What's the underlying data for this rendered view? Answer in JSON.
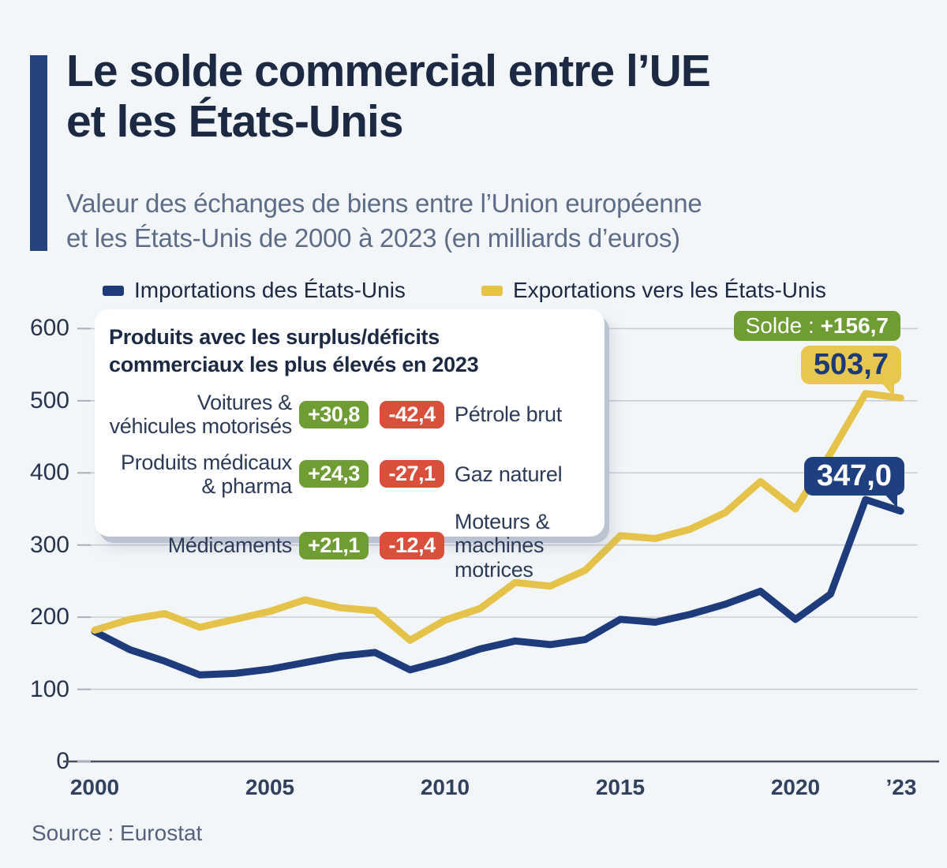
{
  "header": {
    "title_line1": "Le solde commercial entre l’UE",
    "title_line2": "et les États-Unis",
    "subtitle_line1": "Valeur des échanges de biens entre l’Union européenne",
    "subtitle_line2": "et les États-Unis de 2000 à 2023 (en milliards d’euros)"
  },
  "legend": {
    "imports_label": "Importations des États-Unis",
    "exports_label": "Exportations vers les États-Unis"
  },
  "callout": {
    "title_line1": "Produits avec les surplus/déficits",
    "title_line2": "commerciaux les plus élevés en 2023",
    "rows": [
      {
        "surplus_label": "Voitures & véhicules motorisés",
        "surplus_value": "+30,8",
        "deficit_value": "-42,4",
        "deficit_label": "Pétrole brut"
      },
      {
        "surplus_label": "Produits médicaux & pharma",
        "surplus_value": "+24,3",
        "deficit_value": "-27,1",
        "deficit_label": "Gaz naturel"
      },
      {
        "surplus_label": "Médicaments",
        "surplus_value": "+21,1",
        "deficit_value": "-12,4",
        "deficit_label": "Moteurs & machines motrices"
      }
    ]
  },
  "annotations": {
    "solde_prefix": "Solde : ",
    "solde_value": "+156,7",
    "exports_final": "503,7",
    "imports_final": "347,0"
  },
  "axes": {
    "y_ticks": [
      "600",
      "500",
      "400",
      "300",
      "200",
      "100",
      "0"
    ],
    "x_ticks": [
      "2000",
      "2005",
      "2010",
      "2015",
      "2020",
      "’23"
    ]
  },
  "source": "Source : Eurostat",
  "colors": {
    "background": "#f3f6f9",
    "accent_bar": "#24427c",
    "title_text": "#1b2942",
    "subtitle_text": "#5d6d88",
    "imports_line": "#1e3c7c",
    "exports_line": "#e5c34b",
    "surplus_green": "#6f9d33",
    "deficit_red": "#d8503c",
    "solde_badge": "#6f9d33",
    "exports_badge_bg": "#e8c751",
    "imports_badge_bg": "#1e3f80",
    "gridline": "#c9ced6",
    "baseline": "#47515f"
  },
  "chart_data": {
    "type": "line",
    "title": "Le solde commercial entre l’UE et les États-Unis",
    "subtitle": "Valeur des échanges de biens entre l’Union européenne et les États-Unis de 2000 à 2023 (en milliards d’euros)",
    "xlabel": "",
    "ylabel": "milliards d’euros",
    "ylim": [
      0,
      600
    ],
    "y_ticks": [
      0,
      100,
      200,
      300,
      400,
      500,
      600
    ],
    "x_tick_labels": [
      "2000",
      "2005",
      "2010",
      "2015",
      "2020",
      "’23"
    ],
    "grid": true,
    "legend_position": "top",
    "x": [
      2000,
      2001,
      2002,
      2003,
      2004,
      2005,
      2006,
      2007,
      2008,
      2009,
      2010,
      2011,
      2012,
      2013,
      2014,
      2015,
      2016,
      2017,
      2018,
      2019,
      2020,
      2021,
      2022,
      2023
    ],
    "series": [
      {
        "name": "Importations des États-Unis",
        "color": "#1e3c7c",
        "values": [
          180,
          155,
          139,
          120,
          122,
          128,
          137,
          146,
          151,
          127,
          140,
          156,
          167,
          162,
          169,
          197,
          193,
          204,
          218,
          236,
          197,
          232,
          363,
          347.0
        ]
      },
      {
        "name": "Exportations vers les États-Unis",
        "color": "#e5c34b",
        "values": [
          182,
          197,
          205,
          186,
          197,
          208,
          224,
          213,
          209,
          168,
          196,
          212,
          248,
          243,
          265,
          313,
          309,
          322,
          345,
          388,
          350,
          427,
          510,
          503.7
        ]
      }
    ],
    "final_values": {
      "imports_2023": 347.0,
      "exports_2023": 503.7,
      "balance_2023": 156.7
    }
  }
}
